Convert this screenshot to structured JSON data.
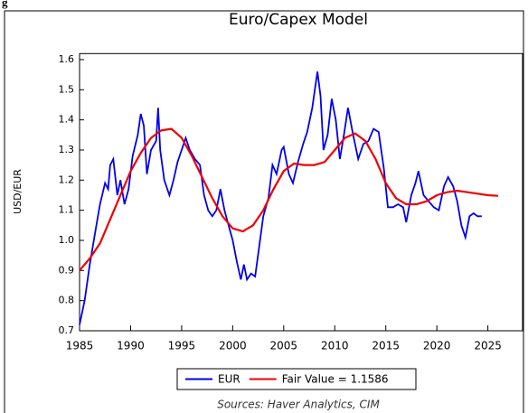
{
  "corner_text": "g",
  "chart_data": {
    "type": "line",
    "title": "Euro/Capex Model",
    "ylabel": "USD/EUR",
    "source": "Sources:  Haver Analytics, CIM",
    "xlim": [
      1985,
      2028.4
    ],
    "xticks": [
      1985,
      1990,
      1995,
      2000,
      2005,
      2010,
      2015,
      2020,
      2025
    ],
    "ylim": [
      0.7,
      1.62
    ],
    "yticks": [
      {
        "value": 0.7,
        "label": "0.7"
      },
      {
        "value": 0.8,
        "label": "0.8"
      },
      {
        "value": 0.9,
        "label": "0.9"
      },
      {
        "value": 1.0,
        "label": "1.0"
      },
      {
        "value": 1.1,
        "label": "1.1"
      },
      {
        "value": 1.2,
        "label": "1.2"
      },
      {
        "value": 1.3,
        "label": "1.3"
      },
      {
        "value": 1.4,
        "label": "1.4"
      },
      {
        "value": 1.5,
        "label": "1.5"
      },
      {
        "value": 1.6,
        "label": "1.6"
      }
    ],
    "grid": false,
    "legend": "bottom",
    "series": [
      {
        "name": "EUR",
        "color": "#0000ee",
        "x": [
          1985.0,
          1985.5,
          1986.0,
          1986.5,
          1987.0,
          1987.5,
          1987.8,
          1988.0,
          1988.3,
          1988.7,
          1989.0,
          1989.4,
          1989.8,
          1990.2,
          1990.7,
          1991.0,
          1991.3,
          1991.6,
          1992.0,
          1992.5,
          1992.7,
          1992.9,
          1993.3,
          1993.8,
          1994.2,
          1994.6,
          1995.0,
          1995.4,
          1995.8,
          1996.3,
          1996.8,
          1997.2,
          1997.6,
          1998.0,
          1998.4,
          1998.8,
          1999.2,
          1999.6,
          2000.0,
          2000.4,
          2000.8,
          2001.1,
          2001.4,
          2001.8,
          2002.2,
          2002.6,
          2003.0,
          2003.5,
          2003.9,
          2004.3,
          2004.8,
          2005.0,
          2005.5,
          2005.9,
          2006.4,
          2006.9,
          2007.3,
          2007.8,
          2008.3,
          2008.6,
          2008.9,
          2009.3,
          2009.7,
          2010.1,
          2010.5,
          2010.9,
          2011.3,
          2011.8,
          2012.3,
          2012.8,
          2013.3,
          2013.8,
          2014.3,
          2014.8,
          2015.2,
          2015.7,
          2016.2,
          2016.7,
          2017.0,
          2017.5,
          2017.9,
          2018.2,
          2018.7,
          2019.2,
          2019.7,
          2020.2,
          2020.7,
          2021.1,
          2021.6,
          2022.0,
          2022.4,
          2022.8,
          2023.2,
          2023.6,
          2024.0,
          2024.4
        ],
        "values": [
          0.72,
          0.8,
          0.92,
          1.02,
          1.12,
          1.19,
          1.17,
          1.25,
          1.27,
          1.15,
          1.2,
          1.12,
          1.17,
          1.28,
          1.35,
          1.42,
          1.38,
          1.22,
          1.3,
          1.33,
          1.44,
          1.3,
          1.2,
          1.15,
          1.2,
          1.26,
          1.3,
          1.34,
          1.3,
          1.27,
          1.25,
          1.15,
          1.1,
          1.08,
          1.1,
          1.17,
          1.1,
          1.05,
          1.0,
          0.93,
          0.87,
          0.92,
          0.87,
          0.89,
          0.88,
          0.98,
          1.08,
          1.14,
          1.25,
          1.22,
          1.3,
          1.31,
          1.22,
          1.19,
          1.26,
          1.32,
          1.36,
          1.44,
          1.56,
          1.48,
          1.3,
          1.35,
          1.47,
          1.4,
          1.27,
          1.35,
          1.44,
          1.35,
          1.27,
          1.32,
          1.33,
          1.37,
          1.36,
          1.24,
          1.11,
          1.11,
          1.12,
          1.11,
          1.06,
          1.15,
          1.19,
          1.23,
          1.15,
          1.13,
          1.11,
          1.1,
          1.18,
          1.21,
          1.18,
          1.13,
          1.05,
          1.01,
          1.08,
          1.09,
          1.08,
          1.08
        ]
      },
      {
        "name": "Fair Value = 1.1586",
        "color": "#ee0000",
        "x": [
          1985,
          1986,
          1987,
          1988,
          1989,
          1990,
          1991,
          1992,
          1993,
          1994,
          1995,
          1996,
          1997,
          1998,
          1999,
          2000,
          2001,
          2002,
          2003,
          2004,
          2005,
          2006,
          2007,
          2008,
          2009,
          2010,
          2011,
          2012,
          2013,
          2014,
          2015,
          2016,
          2017,
          2018,
          2019,
          2020,
          2021,
          2022,
          2023,
          2024,
          2025,
          2026
        ],
        "values": [
          0.9,
          0.94,
          0.99,
          1.07,
          1.15,
          1.23,
          1.29,
          1.34,
          1.365,
          1.37,
          1.34,
          1.28,
          1.21,
          1.14,
          1.08,
          1.04,
          1.03,
          1.05,
          1.1,
          1.17,
          1.23,
          1.255,
          1.25,
          1.25,
          1.26,
          1.3,
          1.34,
          1.355,
          1.33,
          1.27,
          1.19,
          1.14,
          1.12,
          1.12,
          1.13,
          1.15,
          1.16,
          1.165,
          1.16,
          1.155,
          1.15,
          1.148
        ]
      }
    ]
  }
}
